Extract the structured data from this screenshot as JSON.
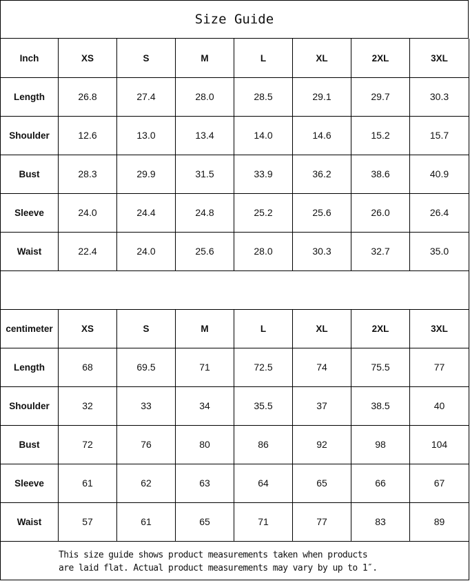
{
  "title": "Size Guide",
  "sizes": [
    "XS",
    "S",
    "M",
    "L",
    "XL",
    "2XL",
    "3XL"
  ],
  "tables": [
    {
      "unit": "Inch",
      "rows": [
        {
          "label": "Length",
          "values": [
            "26.8",
            "27.4",
            "28.0",
            "28.5",
            "29.1",
            "29.7",
            "30.3"
          ]
        },
        {
          "label": "Shoulder",
          "values": [
            "12.6",
            "13.0",
            "13.4",
            "14.0",
            "14.6",
            "15.2",
            "15.7"
          ]
        },
        {
          "label": "Bust",
          "values": [
            "28.3",
            "29.9",
            "31.5",
            "33.9",
            "36.2",
            "38.6",
            "40.9"
          ]
        },
        {
          "label": "Sleeve",
          "values": [
            "24.0",
            "24.4",
            "24.8",
            "25.2",
            "25.6",
            "26.0",
            "26.4"
          ]
        },
        {
          "label": "Waist",
          "values": [
            "22.4",
            "24.0",
            "25.6",
            "28.0",
            "30.3",
            "32.7",
            "35.0"
          ]
        }
      ]
    },
    {
      "unit": "centimeter",
      "rows": [
        {
          "label": "Length",
          "values": [
            "68",
            "69.5",
            "71",
            "72.5",
            "74",
            "75.5",
            "77"
          ]
        },
        {
          "label": "Shoulder",
          "values": [
            "32",
            "33",
            "34",
            "35.5",
            "37",
            "38.5",
            "40"
          ]
        },
        {
          "label": "Bust",
          "values": [
            "72",
            "76",
            "80",
            "86",
            "92",
            "98",
            "104"
          ]
        },
        {
          "label": "Sleeve",
          "values": [
            "61",
            "62",
            "63",
            "64",
            "65",
            "66",
            "67"
          ]
        },
        {
          "label": "Waist",
          "values": [
            "57",
            "61",
            "65",
            "71",
            "77",
            "83",
            "89"
          ]
        }
      ]
    }
  ],
  "footer": {
    "line1": "This size guide shows product measurements taken when products",
    "line2": "are laid flat. Actual product measurements may vary by up to 1″."
  }
}
